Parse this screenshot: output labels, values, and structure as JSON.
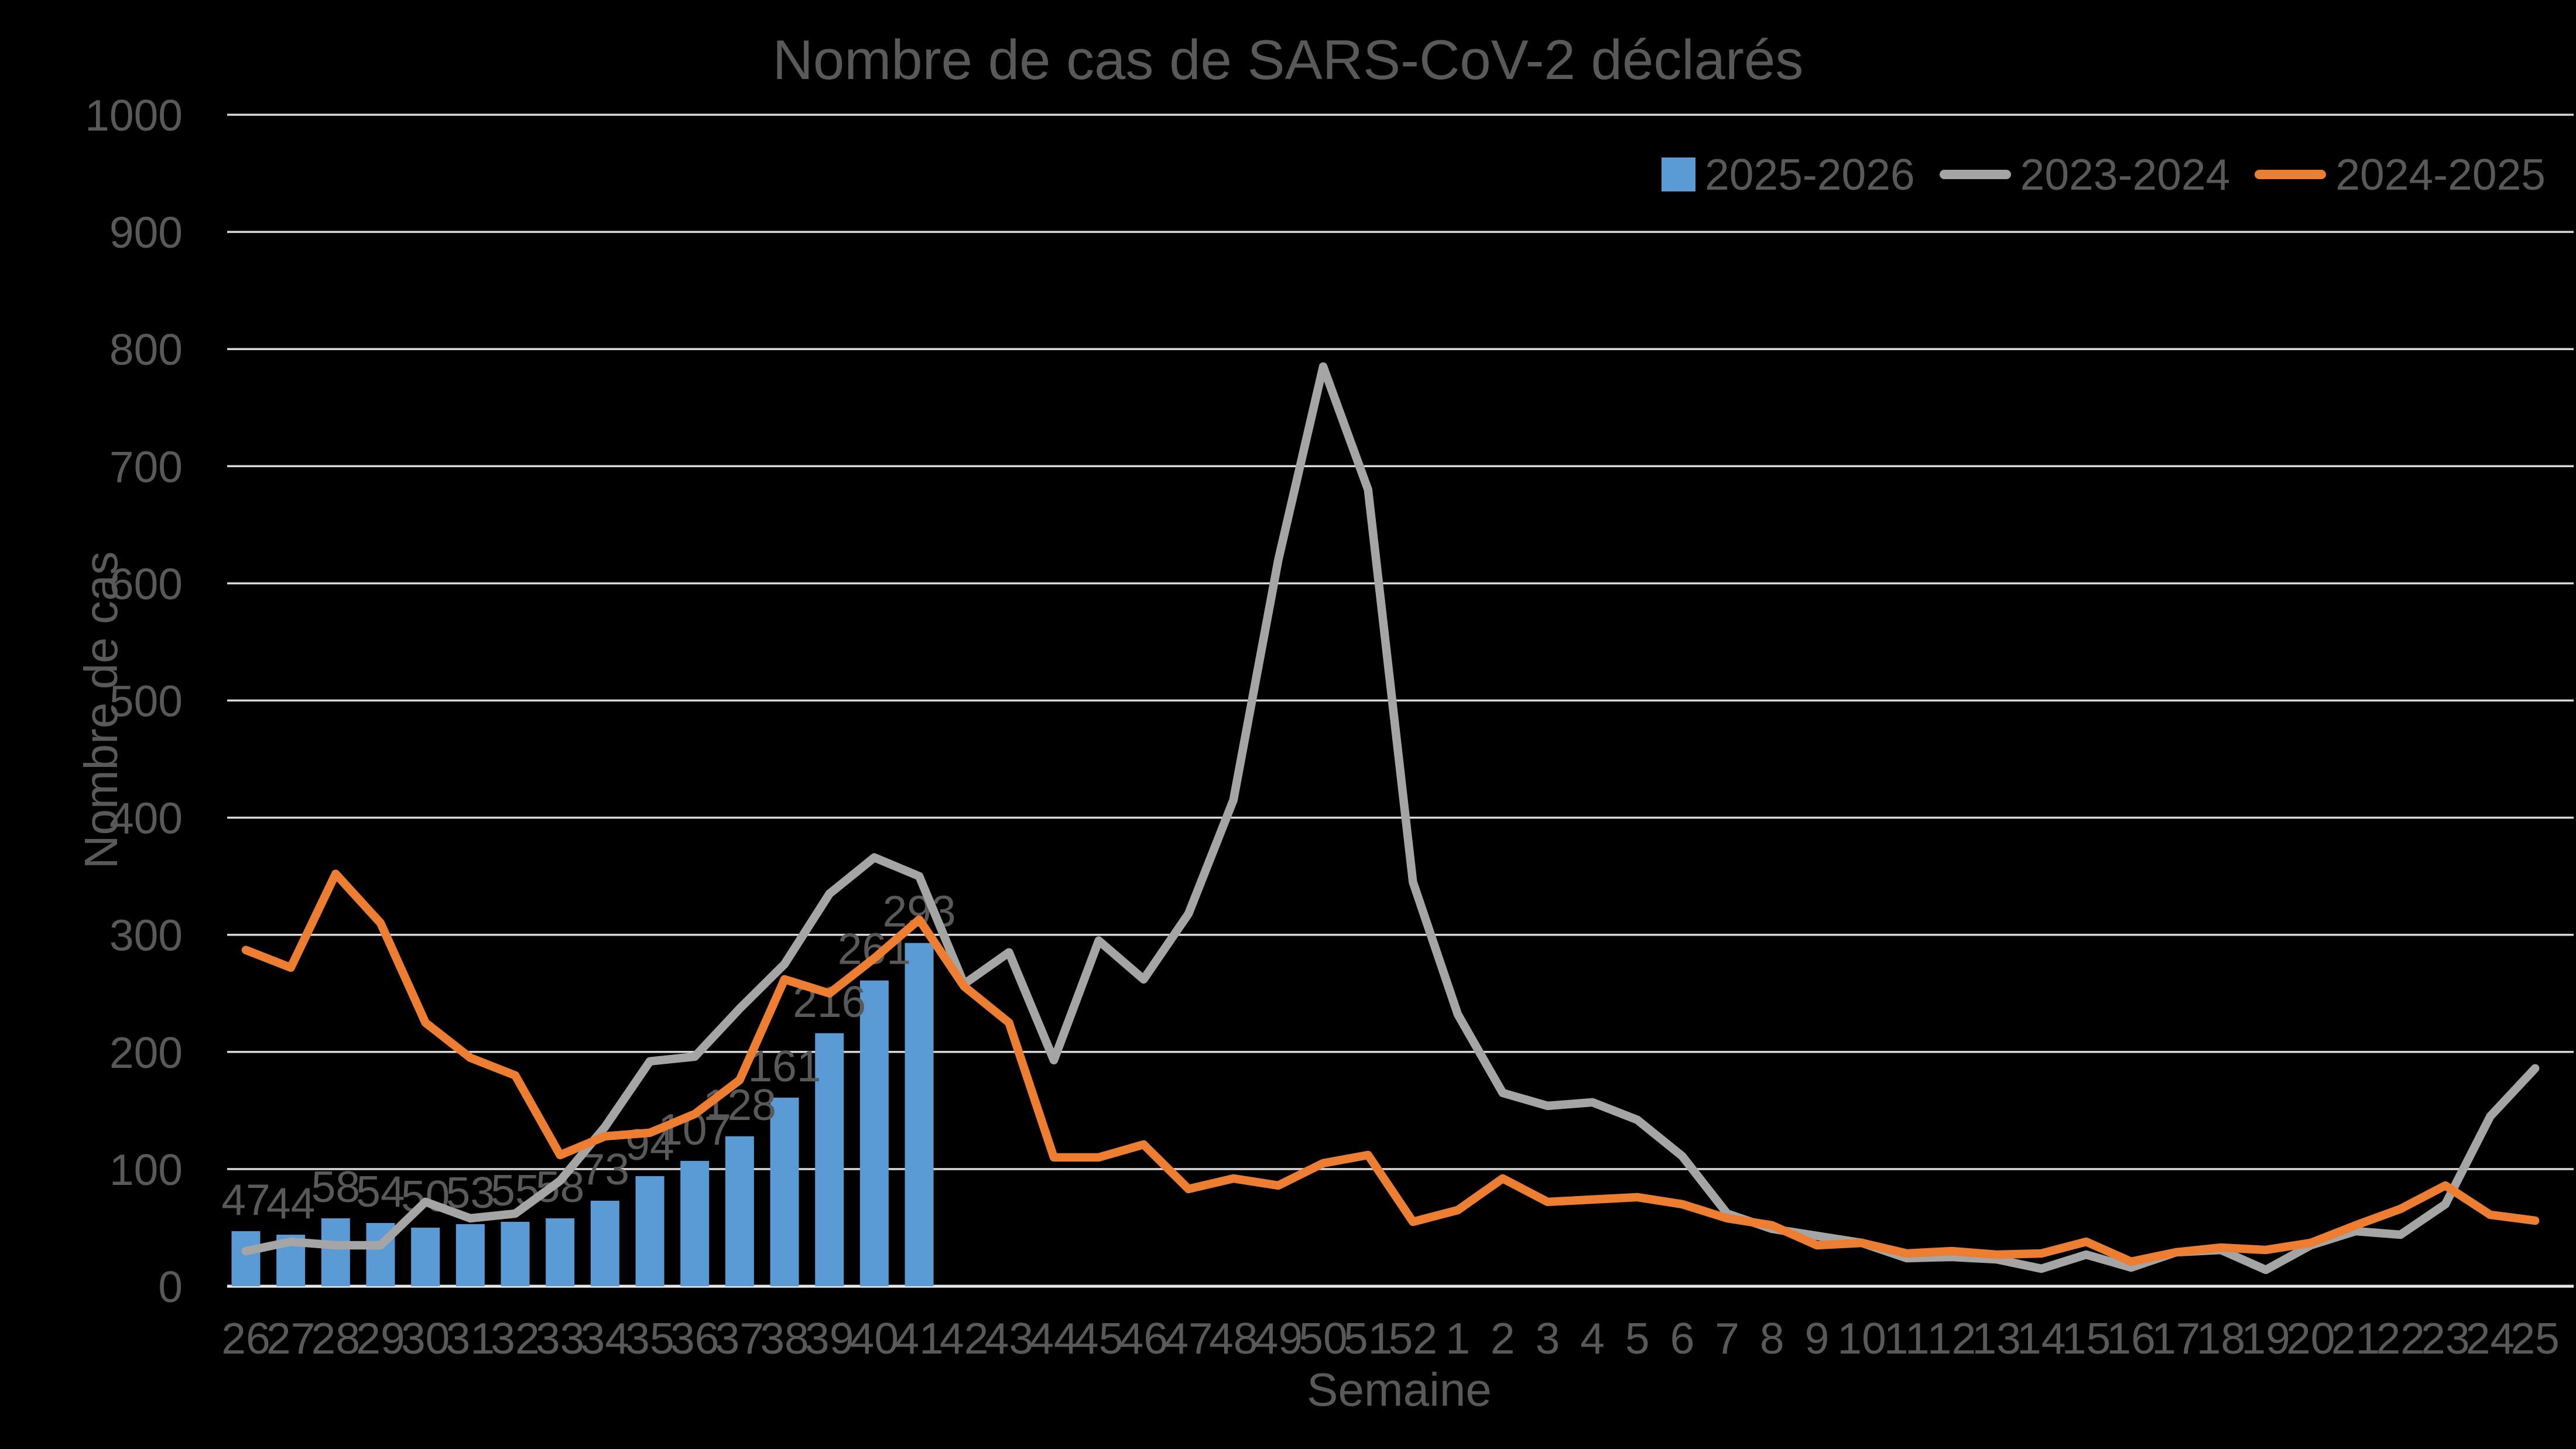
{
  "title": "Nombre de cas de SARS-CoV-2 déclarés",
  "axes": {
    "x_title": "Semaine",
    "y_title": "Nombre de cas",
    "y_ticks": [
      0,
      100,
      200,
      300,
      400,
      500,
      600,
      700,
      800,
      900,
      1000
    ]
  },
  "legend": [
    {
      "label": "2025-2026",
      "color": "#5B9BD5",
      "swatch": "square"
    },
    {
      "label": "2023-2024",
      "color": "#A5A5A5",
      "swatch": "line"
    },
    {
      "label": "2024-2025",
      "color": "#ED7D31",
      "swatch": "line"
    }
  ],
  "colors": {
    "background": "#000000",
    "text": "#595959",
    "gridline": "#D9D9D9",
    "axis_line": "#E8E8E8",
    "bar": "#5B9BD5",
    "line_gray": "#A5A5A5",
    "line_orange": "#ED7D31"
  },
  "chart_data": {
    "type": "combo",
    "title": "Nombre de cas de SARS-CoV-2 déclarés",
    "xlabel": "Semaine",
    "ylabel": "Nombre de cas",
    "ylim": [
      0,
      1000
    ],
    "grid": true,
    "legend_position": "top-right",
    "categories": [
      "26",
      "27",
      "28",
      "29",
      "30",
      "31",
      "32",
      "33",
      "34",
      "35",
      "36",
      "37",
      "38",
      "39",
      "40",
      "41",
      "42",
      "43",
      "44",
      "45",
      "46",
      "47",
      "48",
      "49",
      "50",
      "51",
      "52",
      "1",
      "2",
      "3",
      "4",
      "5",
      "6",
      "7",
      "8",
      "9",
      "10",
      "11",
      "12",
      "13",
      "14",
      "15",
      "16",
      "17",
      "18",
      "19",
      "20",
      "21",
      "22",
      "23",
      "24",
      "25"
    ],
    "series": [
      {
        "name": "2025-2026",
        "type": "bar",
        "color": "#5B9BD5",
        "data_labels": true,
        "values": [
          47,
          44,
          58,
          54,
          50,
          53,
          55,
          58,
          73,
          94,
          107,
          128,
          161,
          216,
          261,
          293,
          null,
          null,
          null,
          null,
          null,
          null,
          null,
          null,
          null,
          null,
          null,
          null,
          null,
          null,
          null,
          null,
          null,
          null,
          null,
          null,
          null,
          null,
          null,
          null,
          null,
          null,
          null,
          null,
          null,
          null,
          null,
          null,
          null,
          null,
          null,
          null
        ]
      },
      {
        "name": "2023-2024",
        "type": "line",
        "color": "#A5A5A5",
        "values": [
          30,
          38,
          35,
          35,
          72,
          58,
          62,
          90,
          136,
          192,
          196,
          237,
          275,
          335,
          366,
          350,
          258,
          285,
          193,
          295,
          262,
          318,
          415,
          620,
          785,
          680,
          345,
          232,
          165,
          154,
          157,
          142,
          111,
          62,
          49,
          43,
          37,
          24,
          25,
          23,
          15,
          27,
          16,
          29,
          31,
          14,
          35,
          47,
          44,
          70,
          145,
          186
        ]
      },
      {
        "name": "2024-2025",
        "type": "line",
        "color": "#ED7D31",
        "values": [
          287,
          272,
          352,
          310,
          225,
          195,
          180,
          112,
          128,
          131,
          147,
          176,
          262,
          250,
          280,
          313,
          256,
          225,
          110,
          110,
          121,
          83,
          92,
          86,
          105,
          112,
          55,
          65,
          92,
          72,
          74,
          76,
          70,
          58,
          52,
          35,
          37,
          28,
          30,
          27,
          28,
          38,
          21,
          29,
          33,
          31,
          37,
          52,
          66,
          86,
          61,
          56
        ]
      }
    ]
  }
}
